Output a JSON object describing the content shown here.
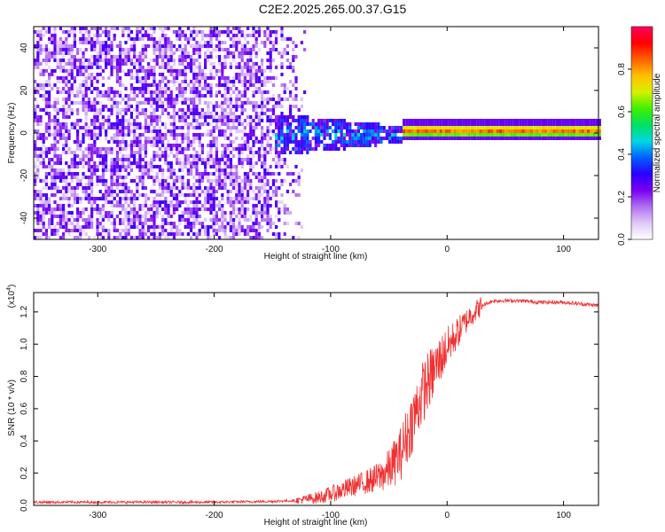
{
  "title": "C2E2.2025.265.00.37.G15",
  "chart_data": [
    {
      "type": "heatmap",
      "title": "C2E2.2025.265.00.37.G15",
      "xlabel": "Height of straight line (km)",
      "ylabel": "Frequency (Hz)",
      "xlim": [
        -355,
        130
      ],
      "ylim": [
        -50,
        50
      ],
      "x_ticks": [
        -300,
        -200,
        -100,
        0,
        100
      ],
      "y_ticks": [
        -40,
        -20,
        0,
        20,
        40
      ],
      "colorbar": {
        "label": "Normalized spectral amplitude",
        "range": [
          0,
          1
        ],
        "ticks": [
          0.0,
          0.2,
          0.4,
          0.6,
          0.8
        ],
        "colors": [
          "#ffffff",
          "#e0c8f8",
          "#b070f0",
          "#7800f0",
          "#2a00ff",
          "#0060ff",
          "#00d8e0",
          "#00e060",
          "#40f000",
          "#d8f000",
          "#ffc000",
          "#ff6000",
          "#ff0000",
          "#ff0060"
        ]
      },
      "regions": [
        {
          "name": "noise",
          "x_range": [
            -355,
            -120
          ],
          "freq_range": [
            -50,
            50
          ],
          "amplitude": [
            0.05,
            0.3
          ]
        },
        {
          "name": "onset",
          "x_range": [
            -150,
            -40
          ],
          "freq_center": 0,
          "freq_halfwidth": 10,
          "amplitude": [
            0.2,
            0.5
          ]
        },
        {
          "name": "carrier",
          "x_range": [
            -40,
            130
          ],
          "freq_center": 2,
          "freq_halfwidth": 3,
          "amplitude": [
            0.5,
            0.95
          ]
        }
      ]
    },
    {
      "type": "line",
      "xlabel": "Height of straight line (km)",
      "ylabel": "SNR (10 * v/v)",
      "y_multiplier": "(x10",
      "y_multiplier_exp": "4",
      "xlim": [
        -355,
        130
      ],
      "ylim": [
        0,
        1.32
      ],
      "x_ticks": [
        -300,
        -200,
        -100,
        0,
        100
      ],
      "y_ticks": [
        0.0,
        0.2,
        0.4,
        0.6,
        0.8,
        1.0,
        1.2
      ],
      "line_color": "#f03030",
      "series": [
        {
          "name": "SNR",
          "x": [
            -355,
            -300,
            -250,
            -200,
            -150,
            -130,
            -110,
            -100,
            -80,
            -60,
            -50,
            -40,
            -30,
            -20,
            -10,
            -5,
            0,
            10,
            20,
            30,
            40,
            60,
            80,
            100,
            130
          ],
          "values": [
            0.02,
            0.02,
            0.02,
            0.02,
            0.025,
            0.03,
            0.05,
            0.07,
            0.12,
            0.17,
            0.22,
            0.32,
            0.52,
            0.72,
            0.85,
            0.92,
            0.98,
            1.08,
            1.18,
            1.24,
            1.27,
            1.27,
            1.26,
            1.26,
            1.24
          ]
        }
      ]
    }
  ]
}
